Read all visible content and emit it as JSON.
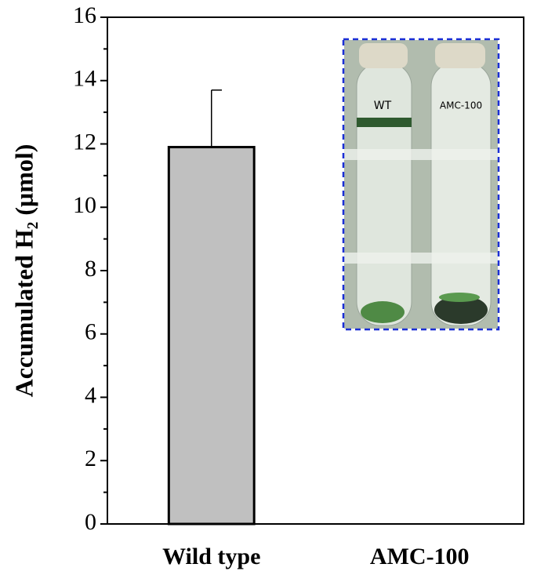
{
  "chart_data": {
    "type": "bar",
    "y_label": "Accumulated H₂ (μmol)",
    "categories": [
      "Wild type",
      "AMC-100"
    ],
    "values": [
      11.9,
      0
    ],
    "errors": [
      1.8,
      null
    ],
    "color": "#c0c0c0",
    "ylim": [
      0,
      16
    ],
    "yticks": [
      0,
      2,
      4,
      6,
      8,
      10,
      12,
      14,
      16
    ],
    "yminorticks": [
      1,
      3,
      5,
      7,
      9,
      11,
      13,
      15
    ],
    "inset_labels": [
      "WT",
      "AMC-100"
    ]
  }
}
